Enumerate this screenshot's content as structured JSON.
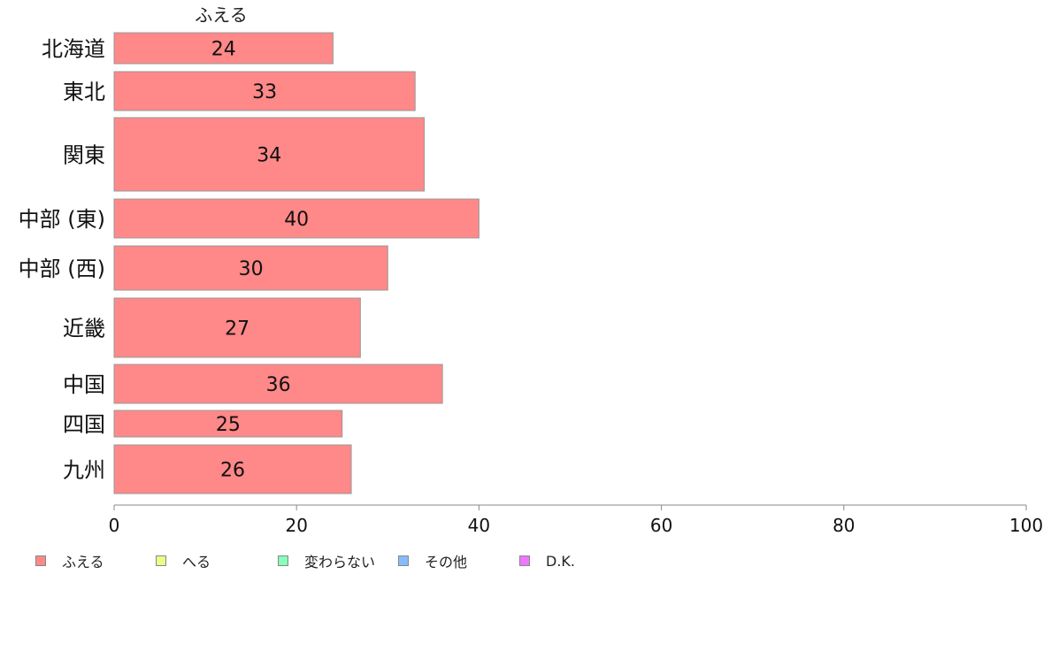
{
  "chart_data": {
    "type": "bar",
    "orientation": "horizontal",
    "title": "ふえる",
    "categories": [
      "北海道",
      "東北",
      "関東",
      "中部 (東)",
      "中部 (西)",
      "近畿",
      "中国",
      "四国",
      "九州"
    ],
    "series": [
      {
        "name": "ふえる",
        "values": [
          24,
          33,
          34,
          40,
          30,
          27,
          36,
          25,
          26
        ],
        "color": "#ff8888"
      }
    ],
    "data_labels": [
      "24",
      "33",
      "34",
      "40",
      "30",
      "27",
      "36",
      "25",
      "26"
    ],
    "xlim": [
      0,
      100
    ],
    "xticks": [
      "0",
      "20",
      "40",
      "60",
      "80",
      "100"
    ],
    "grid": false,
    "legend_position": "bottom",
    "legend": [
      {
        "label": "ふえる",
        "color": "#ff8888"
      },
      {
        "label": "へる",
        "color": "#e8ff88"
      },
      {
        "label": "変わらない",
        "color": "#88ffbb"
      },
      {
        "label": "その他",
        "color": "#88bbff"
      },
      {
        "label": "D.K.",
        "color": "#ee77ff"
      }
    ]
  }
}
